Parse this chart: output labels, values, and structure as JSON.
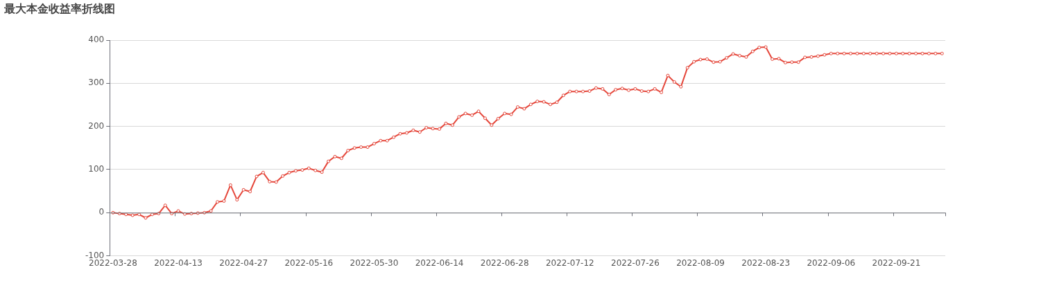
{
  "chart_data": {
    "type": "line",
    "title": "最大本金收益率折线图",
    "categories": [
      "2022-03-28",
      null,
      null,
      null,
      null,
      null,
      null,
      null,
      null,
      null,
      "2022-04-13",
      null,
      null,
      null,
      null,
      null,
      null,
      null,
      null,
      null,
      "2022-04-27",
      null,
      null,
      null,
      null,
      null,
      null,
      null,
      null,
      null,
      "2022-05-16",
      null,
      null,
      null,
      null,
      null,
      null,
      null,
      null,
      null,
      "2022-05-30",
      null,
      null,
      null,
      null,
      null,
      null,
      null,
      null,
      null,
      "2022-06-14",
      null,
      null,
      null,
      null,
      null,
      null,
      null,
      null,
      null,
      "2022-06-28",
      null,
      null,
      null,
      null,
      null,
      null,
      null,
      null,
      null,
      "2022-07-12",
      null,
      null,
      null,
      null,
      null,
      null,
      null,
      null,
      null,
      "2022-07-26",
      null,
      null,
      null,
      null,
      null,
      null,
      null,
      null,
      null,
      "2022-08-09",
      null,
      null,
      null,
      null,
      null,
      null,
      null,
      null,
      null,
      "2022-08-23",
      null,
      null,
      null,
      null,
      null,
      null,
      null,
      null,
      null,
      "2022-09-06",
      null,
      null,
      null,
      null,
      null,
      null,
      null,
      null,
      null,
      "2022-09-21",
      null,
      null,
      null,
      null,
      null,
      null,
      null
    ],
    "series": [
      {
        "color": "#e5473b",
        "values": [
          0,
          -2,
          -4,
          -6,
          -4,
          -12,
          -4,
          -2,
          17,
          -2,
          4,
          -3,
          -2,
          -1,
          0,
          4,
          25,
          27,
          64,
          30,
          53,
          49,
          84,
          93,
          72,
          71,
          85,
          93,
          97,
          99,
          103,
          98,
          94,
          119,
          130,
          126,
          144,
          150,
          152,
          152,
          160,
          167,
          167,
          175,
          183,
          185,
          191,
          187,
          197,
          195,
          194,
          207,
          203,
          222,
          230,
          226,
          235,
          219,
          203,
          218,
          230,
          228,
          245,
          241,
          251,
          258,
          257,
          251,
          256,
          272,
          281,
          281,
          281,
          282,
          289,
          287,
          274,
          285,
          288,
          284,
          287,
          282,
          281,
          287,
          279,
          318,
          303,
          292,
          336,
          350,
          355,
          356,
          349,
          350,
          359,
          368,
          364,
          361,
          374,
          383,
          384,
          356,
          357,
          348,
          349,
          349,
          360,
          361,
          363,
          366,
          369,
          369,
          369,
          369,
          369,
          369,
          369,
          369,
          369,
          369,
          369,
          369,
          369,
          369,
          369,
          369,
          369,
          369
        ]
      }
    ],
    "ylim": [
      -100,
      400
    ],
    "yticks": [
      -100,
      0,
      100,
      200,
      300,
      400
    ],
    "grid": "y",
    "marker": "circle",
    "line_style": "solid"
  }
}
